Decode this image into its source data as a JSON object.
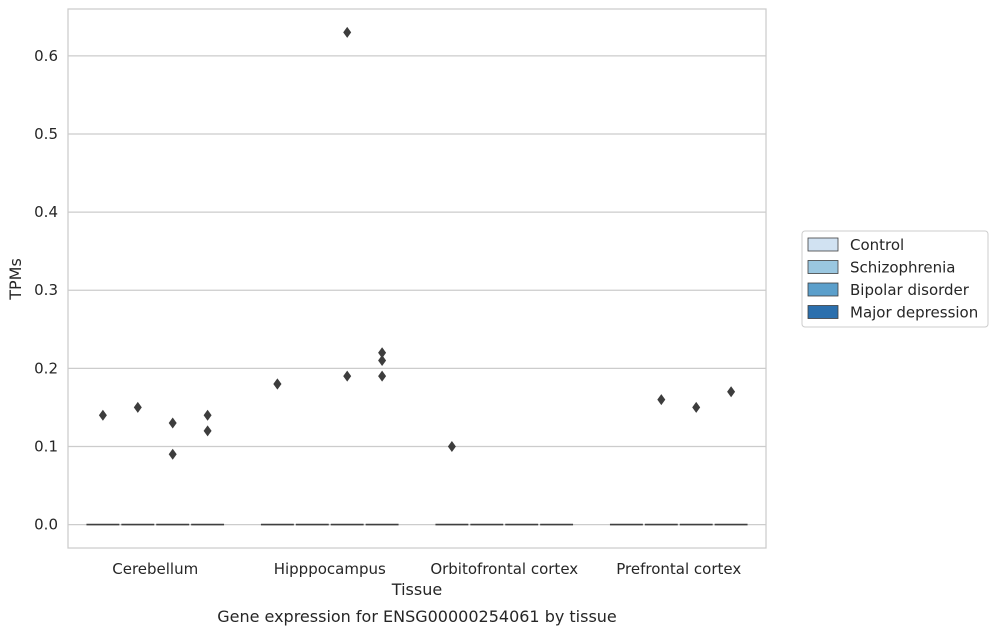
{
  "chart_data": {
    "type": "box",
    "title": "Gene expression for ENSG00000254061 by tissue",
    "xlabel": "Tissue",
    "ylabel": "TPMs",
    "ylim": [
      -0.03,
      0.66
    ],
    "yticks": [
      "0.0",
      "0.1",
      "0.2",
      "0.3",
      "0.4",
      "0.5",
      "0.6"
    ],
    "grid": true,
    "legend_position": "right",
    "categories": [
      "Cerebellum",
      "Hipppocampus",
      "Orbitofrontal cortex",
      "Prefrontal cortex"
    ],
    "series": [
      {
        "name": "Control",
        "color": "#d1e2f2",
        "median": [
          0,
          0,
          0,
          0
        ],
        "outliers": [
          [
            0.14
          ],
          [
            0.18,
            0.18
          ],
          [
            0.1
          ],
          []
        ]
      },
      {
        "name": "Schizophrenia",
        "color": "#9ac7e0",
        "median": [
          0,
          0,
          0,
          0
        ],
        "outliers": [
          [
            0.15
          ],
          [],
          [],
          [
            0.16
          ]
        ]
      },
      {
        "name": "Bipolar disorder",
        "color": "#5b9fcb",
        "median": [
          0,
          0,
          0,
          0
        ],
        "outliers": [
          [
            0.13,
            0.09
          ],
          [
            0.63,
            0.19
          ],
          [],
          [
            0.15
          ]
        ]
      },
      {
        "name": "Major depression",
        "color": "#2b6fad",
        "median": [
          0,
          0,
          0,
          0
        ],
        "outliers": [
          [
            0.14,
            0.12
          ],
          [
            0.22,
            0.21,
            0.19
          ],
          [],
          [
            0.17
          ]
        ]
      }
    ]
  }
}
